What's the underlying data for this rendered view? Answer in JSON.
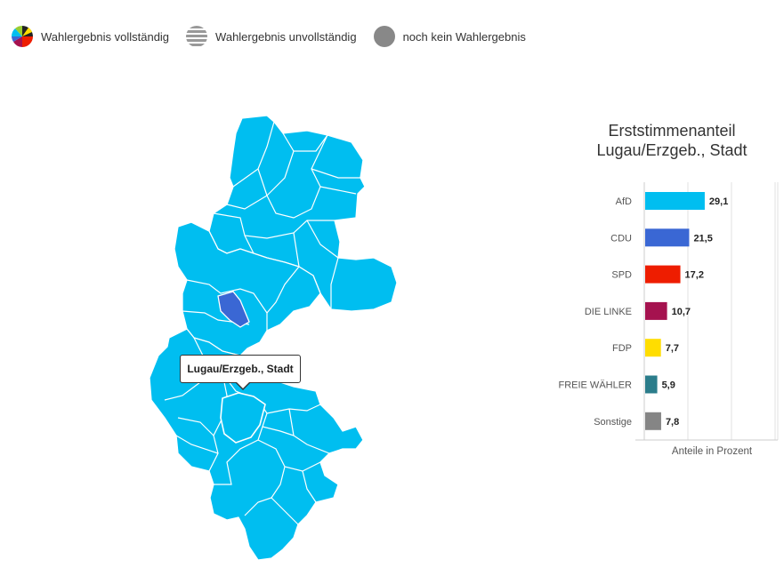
{
  "legend": {
    "items": [
      {
        "label": "Wahlergebnis vollständig",
        "icon": "pie-multicolor-icon"
      },
      {
        "label": "Wahlergebnis unvollständig",
        "icon": "striped-circle-icon"
      },
      {
        "label": "noch kein Wahlergebnis",
        "icon": "gray-circle-icon"
      }
    ],
    "colors": {
      "striped": "#999999",
      "none": "#888888"
    }
  },
  "map": {
    "fill_color": "#00BEF0",
    "highlight_color": "#3A67D4",
    "tooltip": "Lugau/Erzgeb., Stadt"
  },
  "chart": {
    "title_line1": "Erststimmenanteil",
    "title_line2": "Lugau/Erzgeb., Stadt",
    "xlabel": "Anteile in Prozent"
  },
  "chart_data": {
    "type": "bar",
    "orientation": "horizontal",
    "title": "Erststimmenanteil Lugau/Erzgeb., Stadt",
    "xlabel": "Anteile in Prozent",
    "xlim": [
      0,
      35
    ],
    "grid": true,
    "categories": [
      "AfD",
      "CDU",
      "SPD",
      "DIE LINKE",
      "FDP",
      "FREIE WÄHLER",
      "Sonstige"
    ],
    "values": [
      29.1,
      21.5,
      17.2,
      10.7,
      7.7,
      5.9,
      7.8
    ],
    "labels": [
      "29,1",
      "21,5",
      "17,2",
      "10,7",
      "7,7",
      "5,9",
      "7,8"
    ],
    "colors": [
      "#00BEF0",
      "#3A67D4",
      "#EE1D00",
      "#A5124F",
      "#FFDD00",
      "#2B7D8B",
      "#858585"
    ]
  }
}
